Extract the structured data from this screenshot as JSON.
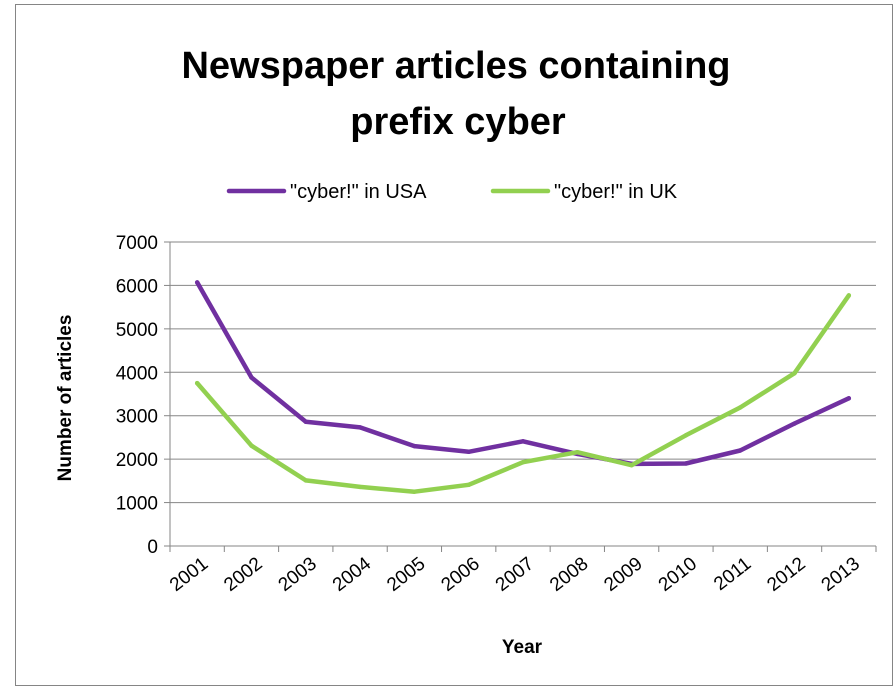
{
  "chart_data": {
    "type": "line",
    "title_lines": [
      "Newspaper articles containing",
      "prefix cyber"
    ],
    "xlabel": "Year",
    "ylabel": "Number of articles",
    "ylim": [
      0,
      7000
    ],
    "yticks": [
      0,
      1000,
      2000,
      3000,
      4000,
      5000,
      6000,
      7000
    ],
    "grid": true,
    "legend_position": "top",
    "categories": [
      "2001",
      "2002",
      "2003",
      "2004",
      "2005",
      "2006",
      "2007",
      "2008",
      "2009",
      "2010",
      "2011",
      "2012",
      "2013"
    ],
    "series": [
      {
        "name": "\"cyber!\" in USA",
        "color": "#7030a0",
        "values": [
          6070,
          3880,
          2860,
          2730,
          2300,
          2170,
          2410,
          2120,
          1890,
          1900,
          2200,
          2820,
          3400
        ]
      },
      {
        "name": "\"cyber!\" in UK",
        "color": "#92d050",
        "values": [
          3750,
          2310,
          1510,
          1360,
          1250,
          1410,
          1930,
          2160,
          1860,
          2550,
          3190,
          3980,
          5770
        ]
      }
    ]
  }
}
